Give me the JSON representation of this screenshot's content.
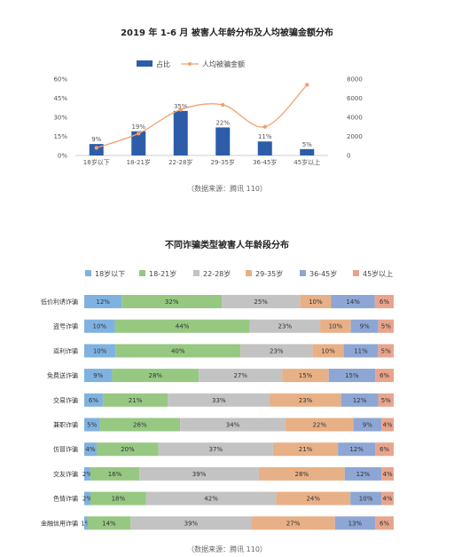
{
  "chart_data": [
    {
      "type": "bar+line",
      "title": "2019 年 1-6 月 被害人年龄分布及人均被骗金额分布",
      "categories": [
        "18岁以下",
        "18-21岁",
        "22-28岁",
        "29-35岁",
        "36-45岁",
        "45岁以上"
      ],
      "series": [
        {
          "name": "占比",
          "type": "bar",
          "axis": "left",
          "values": [
            9,
            19,
            35,
            22,
            11,
            5
          ],
          "labels": [
            "9%",
            "19%",
            "35%",
            "22%",
            "11%",
            "5%"
          ],
          "color": "#2d5da8"
        },
        {
          "name": "人均被骗金额",
          "type": "line",
          "axis": "right",
          "values": [
            800,
            2300,
            4800,
            5300,
            3000,
            7400
          ],
          "color": "#f0a070"
        }
      ],
      "left_axis": {
        "ticks": [
          "0%",
          "15%",
          "30%",
          "45%",
          "60%"
        ],
        "range": [
          0,
          60
        ]
      },
      "right_axis": {
        "ticks": [
          "0",
          "2000",
          "4000",
          "6000",
          "8000"
        ],
        "range": [
          0,
          8000
        ]
      },
      "legend_position": "top",
      "source": "（数据来源：腾讯 110）"
    },
    {
      "type": "stacked-bar",
      "title": "不同诈骗类型被害人年龄段分布",
      "legend": [
        {
          "name": "18岁以下",
          "color": "#7fb2e0"
        },
        {
          "name": "18-21岁",
          "color": "#96c882"
        },
        {
          "name": "22-28岁",
          "color": "#c3c3c3"
        },
        {
          "name": "29-35岁",
          "color": "#e8b086"
        },
        {
          "name": "36-45岁",
          "color": "#8ea6d4"
        },
        {
          "name": "45岁以上",
          "color": "#e8a58c"
        }
      ],
      "legend_position": "top",
      "rows": [
        {
          "name": "低价利诱诈骗",
          "values": [
            12,
            32,
            25,
            10,
            14,
            6
          ],
          "labels": [
            "12%",
            "32%",
            "25%",
            "10%",
            "14%",
            "6%"
          ]
        },
        {
          "name": "盗号诈骗",
          "values": [
            10,
            44,
            23,
            10,
            9,
            5
          ],
          "labels": [
            "10%",
            "44%",
            "23%",
            "10%",
            "9%",
            "5%"
          ]
        },
        {
          "name": "返利诈骗",
          "values": [
            10,
            40,
            23,
            10,
            11,
            5
          ],
          "labels": [
            "10%",
            "40%",
            "23%",
            "10%",
            "11%",
            "5%"
          ]
        },
        {
          "name": "免费送诈骗",
          "values": [
            9,
            28,
            27,
            15,
            15,
            6
          ],
          "labels": [
            "9%",
            "28%",
            "27%",
            "15%",
            "15%",
            "6%"
          ]
        },
        {
          "name": "交易诈骗",
          "values": [
            6,
            21,
            33,
            23,
            12,
            5
          ],
          "labels": [
            "6%",
            "21%",
            "33%",
            "23%",
            "12%",
            "5%"
          ]
        },
        {
          "name": "兼职诈骗",
          "values": [
            5,
            26,
            34,
            22,
            9,
            4
          ],
          "labels": [
            "5%",
            "26%",
            "34%",
            "22%",
            "9%",
            "4%"
          ]
        },
        {
          "name": "仿冒诈骗",
          "values": [
            4,
            20,
            37,
            21,
            12,
            6
          ],
          "labels": [
            "4%",
            "20%",
            "37%",
            "21%",
            "12%",
            "6%"
          ]
        },
        {
          "name": "交友诈骗",
          "values": [
            2,
            16,
            39,
            28,
            12,
            4
          ],
          "labels": [
            "2%",
            "16%",
            "39%",
            "28%",
            "12%",
            "4%"
          ]
        },
        {
          "name": "色情诈骗",
          "values": [
            2,
            18,
            42,
            24,
            10,
            4
          ],
          "labels": [
            "2%",
            "18%",
            "42%",
            "24%",
            "10%",
            "4%"
          ]
        },
        {
          "name": "金融信用诈骗",
          "values": [
            1,
            14,
            39,
            27,
            13,
            6
          ],
          "labels": [
            "1%",
            "14%",
            "39%",
            "27%",
            "13%",
            "6%"
          ]
        }
      ],
      "source": "（数据来源：腾讯 110）"
    }
  ]
}
